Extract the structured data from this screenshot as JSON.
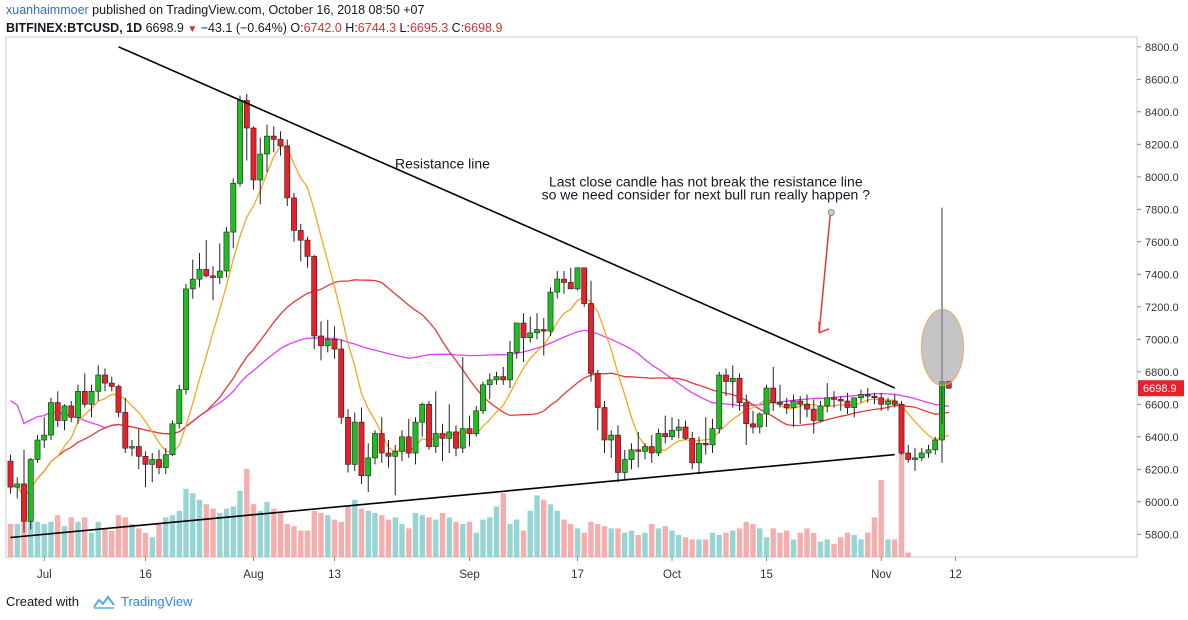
{
  "header": {
    "username": "xuanhaimmoer",
    "published_text": "published on TradingView.com, October 16, 2018 08:50 +07",
    "symbol": "BITFINEX:BTCUSD, 1D",
    "last": "6698.9",
    "change_arrow": "▼",
    "change": "−43.1 (−0.64%)",
    "o_label": "O:",
    "o_value": "6742.0",
    "h_label": "H:",
    "h_value": "6744.3",
    "l_label": "L:",
    "l_value": "6695.3",
    "c_label": "C:",
    "c_value": "6698.9"
  },
  "footer": {
    "created_with": "Created with",
    "brand": "TradingView"
  },
  "chart_data": {
    "type": "candlestick",
    "title": "",
    "y_range": [
      5660,
      8860
    ],
    "y_ticks": [
      "8800.0",
      "8600.0",
      "8400.0",
      "8200.0",
      "8000.0",
      "7800.0",
      "7600.0",
      "7400.0",
      "7200.0",
      "7000.0",
      "6800.0",
      "6600.0",
      "6400.0",
      "6200.0",
      "6000.0",
      "5800.0"
    ],
    "y_tick_values": [
      8800,
      8600,
      8400,
      8200,
      8000,
      7800,
      7600,
      7400,
      7200,
      7000,
      6800,
      6600,
      6400,
      6200,
      6000,
      5800
    ],
    "x_labels": [
      {
        "label": "Jul",
        "index": 5
      },
      {
        "label": "16",
        "index": 20
      },
      {
        "label": "Aug",
        "index": 36
      },
      {
        "label": "13",
        "index": 48
      },
      {
        "label": "Sep",
        "index": 68
      },
      {
        "label": "17",
        "index": 84
      },
      {
        "label": "Oct",
        "index": 98
      },
      {
        "label": "15",
        "index": 112
      },
      {
        "label": "Nov",
        "index": 129
      },
      {
        "label": "12",
        "index": 140
      }
    ],
    "price_badge": "6698.9",
    "price_badge_value": 6698.9,
    "up_color": "#1fbd1f",
    "down_color": "#e8202a",
    "candles": [
      [
        6250,
        6290,
        6050,
        6090
      ],
      [
        6090,
        6150,
        6020,
        6110
      ],
      [
        6110,
        6320,
        5810,
        5880
      ],
      [
        5880,
        6270,
        5830,
        6260
      ],
      [
        6260,
        6410,
        6240,
        6380
      ],
      [
        6380,
        6520,
        6330,
        6410
      ],
      [
        6410,
        6640,
        6380,
        6610
      ],
      [
        6610,
        6680,
        6460,
        6500
      ],
      [
        6500,
        6600,
        6440,
        6590
      ],
      [
        6590,
        6620,
        6490,
        6520
      ],
      [
        6520,
        6720,
        6480,
        6680
      ],
      [
        6680,
        6790,
        6580,
        6600
      ],
      [
        6600,
        6720,
        6520,
        6680
      ],
      [
        6680,
        6840,
        6620,
        6780
      ],
      [
        6780,
        6820,
        6680,
        6730
      ],
      [
        6730,
        6770,
        6680,
        6710
      ],
      [
        6710,
        6720,
        6520,
        6550
      ],
      [
        6550,
        6640,
        6300,
        6330
      ],
      [
        6330,
        6380,
        6280,
        6340
      ],
      [
        6340,
        6450,
        6200,
        6280
      ],
      [
        6280,
        6310,
        6090,
        6230
      ],
      [
        6230,
        6300,
        6120,
        6260
      ],
      [
        6260,
        6320,
        6170,
        6210
      ],
      [
        6210,
        6330,
        6170,
        6290
      ],
      [
        6290,
        6500,
        6280,
        6480
      ],
      [
        6480,
        6720,
        6450,
        6690
      ],
      [
        6690,
        7340,
        6660,
        7310
      ],
      [
        7310,
        7490,
        7250,
        7370
      ],
      [
        7370,
        7530,
        7320,
        7430
      ],
      [
        7430,
        7610,
        7380,
        7390
      ],
      [
        7390,
        7450,
        7240,
        7380
      ],
      [
        7380,
        7590,
        7340,
        7420
      ],
      [
        7420,
        7690,
        7380,
        7660
      ],
      [
        7660,
        7990,
        7560,
        7960
      ],
      [
        7960,
        8500,
        7940,
        8470
      ],
      [
        8470,
        8510,
        8100,
        8300
      ],
      [
        8300,
        8310,
        7920,
        7980
      ],
      [
        7980,
        8240,
        7830,
        8140
      ],
      [
        8140,
        8320,
        8030,
        8250
      ],
      [
        8250,
        8310,
        8150,
        8230
      ],
      [
        8230,
        8280,
        8130,
        8190
      ],
      [
        8190,
        8230,
        7820,
        7870
      ],
      [
        7870,
        7900,
        7600,
        7670
      ],
      [
        7670,
        7710,
        7480,
        7610
      ],
      [
        7610,
        7630,
        7440,
        7510
      ],
      [
        7510,
        7520,
        6940,
        7020
      ],
      [
        7020,
        7110,
        6870,
        6960
      ],
      [
        6960,
        7120,
        6920,
        7000
      ],
      [
        7000,
        7080,
        6880,
        6940
      ],
      [
        6940,
        7000,
        6480,
        6520
      ],
      [
        6520,
        6570,
        6180,
        6230
      ],
      [
        6230,
        6550,
        6190,
        6490
      ],
      [
        6490,
        6580,
        6110,
        6160
      ],
      [
        6160,
        6360,
        6060,
        6270
      ],
      [
        6270,
        6440,
        6230,
        6420
      ],
      [
        6420,
        6520,
        6240,
        6300
      ],
      [
        6300,
        6380,
        6210,
        6280
      ],
      [
        6280,
        6350,
        6040,
        6310
      ],
      [
        6310,
        6440,
        6250,
        6400
      ],
      [
        6400,
        6510,
        6270,
        6300
      ],
      [
        6300,
        6520,
        6230,
        6490
      ],
      [
        6490,
        6610,
        6400,
        6600
      ],
      [
        6600,
        6620,
        6320,
        6340
      ],
      [
        6340,
        6680,
        6300,
        6420
      ],
      [
        6420,
        6480,
        6250,
        6390
      ],
      [
        6390,
        6600,
        6300,
        6430
      ],
      [
        6430,
        6470,
        6280,
        6330
      ],
      [
        6330,
        6890,
        6300,
        6450
      ],
      [
        6450,
        6530,
        6340,
        6420
      ],
      [
        6420,
        6590,
        6400,
        6560
      ],
      [
        6560,
        6740,
        6540,
        6720
      ],
      [
        6720,
        6790,
        6630,
        6750
      ],
      [
        6750,
        6800,
        6720,
        6770
      ],
      [
        6770,
        6830,
        6720,
        6750
      ],
      [
        6750,
        6990,
        6700,
        6920
      ],
      [
        6920,
        7100,
        6880,
        7100
      ],
      [
        7100,
        7160,
        6860,
        7010
      ],
      [
        7010,
        7140,
        6980,
        7040
      ],
      [
        7040,
        7160,
        7000,
        7060
      ],
      [
        7060,
        7130,
        6900,
        7050
      ],
      [
        7050,
        7320,
        7020,
        7290
      ],
      [
        7290,
        7420,
        7250,
        7370
      ],
      [
        7370,
        7420,
        7280,
        7350
      ],
      [
        7350,
        7440,
        7330,
        7310
      ],
      [
        7310,
        7440,
        7300,
        7440
      ],
      [
        7440,
        7440,
        7200,
        7220
      ],
      [
        7220,
        7360,
        6740,
        6790
      ],
      [
        6790,
        6810,
        6440,
        6580
      ],
      [
        6580,
        6620,
        6300,
        6380
      ],
      [
        6380,
        6440,
        6270,
        6410
      ],
      [
        6410,
        6470,
        6120,
        6180
      ],
      [
        6180,
        6320,
        6140,
        6260
      ],
      [
        6260,
        6360,
        6200,
        6320
      ],
      [
        6320,
        6430,
        6210,
        6310
      ],
      [
        6310,
        6360,
        6260,
        6340
      ],
      [
        6340,
        6410,
        6240,
        6300
      ],
      [
        6300,
        6450,
        6280,
        6420
      ],
      [
        6420,
        6530,
        6360,
        6400
      ],
      [
        6400,
        6520,
        6380,
        6440
      ],
      [
        6440,
        6510,
        6390,
        6460
      ],
      [
        6460,
        6500,
        6380,
        6390
      ],
      [
        6390,
        6430,
        6200,
        6240
      ],
      [
        6240,
        6400,
        6170,
        6360
      ],
      [
        6360,
        6520,
        6290,
        6350
      ],
      [
        6350,
        6510,
        6300,
        6450
      ],
      [
        6450,
        6800,
        6420,
        6780
      ],
      [
        6780,
        6820,
        6650,
        6740
      ],
      [
        6740,
        6840,
        6580,
        6760
      ],
      [
        6760,
        6790,
        6560,
        6610
      ],
      [
        6610,
        6660,
        6350,
        6480
      ],
      [
        6480,
        6560,
        6420,
        6460
      ],
      [
        6460,
        6550,
        6420,
        6540
      ],
      [
        6540,
        6720,
        6460,
        6700
      ],
      [
        6700,
        6830,
        6560,
        6610
      ],
      [
        6610,
        6720,
        6580,
        6600
      ],
      [
        6600,
        6640,
        6540,
        6580
      ],
      [
        6580,
        6660,
        6460,
        6620
      ],
      [
        6620,
        6650,
        6480,
        6600
      ],
      [
        6600,
        6660,
        6520,
        6570
      ],
      [
        6570,
        6630,
        6420,
        6500
      ],
      [
        6500,
        6620,
        6490,
        6590
      ],
      [
        6590,
        6730,
        6550,
        6640
      ],
      [
        6640,
        6680,
        6580,
        6630
      ],
      [
        6630,
        6650,
        6560,
        6620
      ],
      [
        6620,
        6670,
        6540,
        6580
      ],
      [
        6580,
        6640,
        6520,
        6640
      ],
      [
        6640,
        6690,
        6610,
        6660
      ],
      [
        6660,
        6700,
        6610,
        6650
      ],
      [
        6650,
        6670,
        6600,
        6640
      ],
      [
        6640,
        6670,
        6560,
        6600
      ],
      [
        6600,
        6640,
        6560,
        6620
      ],
      [
        6620,
        6660,
        6580,
        6600
      ],
      [
        6600,
        6620,
        6290,
        6300
      ],
      [
        6300,
        6350,
        6240,
        6260
      ],
      [
        6260,
        6330,
        6190,
        6270
      ],
      [
        6270,
        6330,
        6250,
        6300
      ],
      [
        6300,
        6350,
        6270,
        6320
      ],
      [
        6320,
        6400,
        6290,
        6380
      ],
      [
        6380,
        6740,
        6240,
        6740
      ],
      [
        6742,
        6744.3,
        6695.3,
        6698.9
      ]
    ],
    "volumes": [
      30,
      30,
      32,
      54,
      32,
      30,
      32,
      38,
      28,
      36,
      32,
      36,
      22,
      32,
      26,
      24,
      38,
      36,
      30,
      26,
      22,
      18,
      30,
      36,
      38,
      42,
      62,
      58,
      52,
      48,
      44,
      40,
      44,
      46,
      60,
      80,
      48,
      42,
      50,
      44,
      40,
      30,
      28,
      24,
      24,
      42,
      40,
      38,
      34,
      32,
      46,
      52,
      44,
      42,
      40,
      38,
      34,
      36,
      30,
      26,
      40,
      38,
      36,
      34,
      40,
      36,
      32,
      30,
      32,
      22,
      34,
      36,
      46,
      58,
      30,
      34,
      24,
      42,
      56,
      52,
      48,
      42,
      34,
      30,
      26,
      22,
      32,
      30,
      28,
      26,
      26,
      22,
      24,
      20,
      22,
      30,
      26,
      28,
      24,
      20,
      18,
      16,
      16,
      16,
      22,
      20,
      22,
      24,
      26,
      32,
      30,
      26,
      18,
      26,
      22,
      24,
      16,
      22,
      26,
      22,
      14,
      16,
      12,
      18,
      22,
      20,
      16,
      22,
      36,
      70,
      16,
      16,
      100,
      4
    ],
    "indicators": [
      {
        "name": "MA 200",
        "color": "#e040fb"
      },
      {
        "name": "MA 100",
        "color": "#e53935"
      },
      {
        "name": "MA 20",
        "color": "#f5a623"
      }
    ],
    "trendlines": [
      {
        "name": "resistance",
        "from": {
          "index": 16,
          "price": 8800
        },
        "to": {
          "index": 131,
          "price": 6700
        }
      },
      {
        "name": "support",
        "from": {
          "index": 0,
          "price": 5780
        },
        "to": {
          "index": 131,
          "price": 6290
        }
      }
    ],
    "annotations": [
      {
        "text": "Resistance line",
        "index": 64,
        "price": 8050
      },
      {
        "text": "Last close candle has not break the resistance line",
        "index": 103,
        "price": 7940
      },
      {
        "text": " so we need consider for next bull run really happen ?",
        "index": 103,
        "price": 7860
      }
    ]
  }
}
